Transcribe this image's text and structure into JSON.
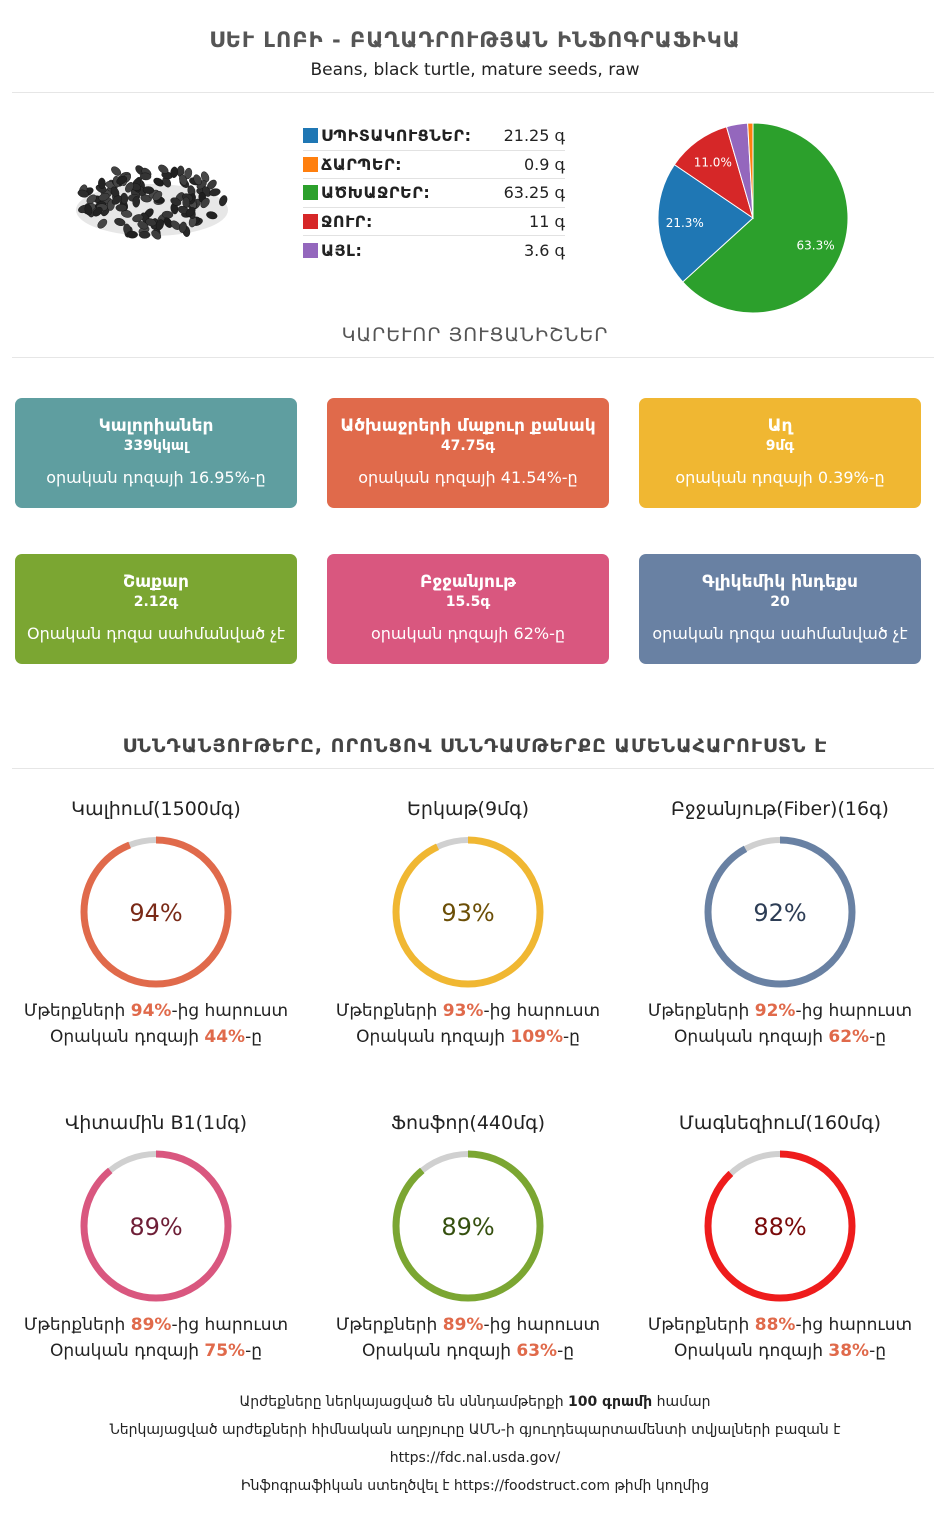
{
  "header": {
    "title": "ՍԵՒ ԼՈԲԻ - ԲԱՂԱԴՐՈՒԹՅԱՆ ԻՆՖՈԳՐԱՖԻԿԱ",
    "subtitle": "Beans, black turtle, mature seeds, raw"
  },
  "macros": [
    {
      "label": "ՍՊԻՏԱԿՈՒՑՆԵՐ:",
      "value": "21.25 գ",
      "color": "#1f77b4"
    },
    {
      "label": "ՃԱՐՊԵՐ:",
      "value": "0.9 գ",
      "color": "#ff7f0e"
    },
    {
      "label": "ԱԾԽԱՋՐԵՐ:",
      "value": "63.25 գ",
      "color": "#2ca02c"
    },
    {
      "label": "ՋՈՒՐ:",
      "value": "11 գ",
      "color": "#d62728"
    },
    {
      "label": "ԱՅԼ:",
      "value": "3.6 գ",
      "color": "#9467bd"
    }
  ],
  "chart_data": {
    "type": "pie",
    "slices": [
      {
        "name": "ԱԾԽԱՋՐԵՐ",
        "value": 63.25,
        "label": "63.3%",
        "color": "#2ca02c"
      },
      {
        "name": "ՍՊԻՏԱԿՈՒՑՆԵՐ",
        "value": 21.25,
        "label": "21.3%",
        "color": "#1f77b4"
      },
      {
        "name": "ՋՈՒՐ",
        "value": 11,
        "label": "11.0%",
        "color": "#d62728"
      },
      {
        "name": "ԱՅԼ",
        "value": 3.6,
        "label": "",
        "color": "#9467bd"
      },
      {
        "name": "ՃԱՐՊԵՐ",
        "value": 0.9,
        "label": "",
        "color": "#ff7f0e"
      }
    ]
  },
  "key_features_heading": "ԿԱՐԵՒՈՐ ՅՈՒՑԱՆԻՇՆԵՐ",
  "cards": [
    {
      "title": "Կալորիաներ",
      "value": "339կկալ",
      "note": "օրական դոզայի 16.95%-ը",
      "color": "#5f9ea0"
    },
    {
      "title": "Ածխաջրերի մաքուր քանակ",
      "value": "47.75գ",
      "note": "օրական դոզայի 41.54%-ը",
      "color": "#e06a4b"
    },
    {
      "title": "Աղ",
      "value": "9մգ",
      "note": "օրական դոզայի 0.39%-ը",
      "color": "#f0b732"
    },
    {
      "title": "Շաքար",
      "value": "2.12գ",
      "note": "Օրական դոզա սահմանված չէ",
      "color": "#7ba632"
    },
    {
      "title": "Բջջանյութ",
      "value": "15.5գ",
      "note": "օրական դոզայի 62%-ը",
      "color": "#d9577f"
    },
    {
      "title": "Գլիկեմիկ ինդեքս",
      "value": "20",
      "note": "օրական դոզա սահմանված չէ",
      "color": "#6981a3"
    }
  ],
  "nutrients_heading": "ՍՆՆԴԱՆՅՈՒԹԵՐԸ, ՈՐՈՆՑՈՎ ՍՆՆԴԱՄԹԵՐՔԸ ԱՄԵՆԱՀԱՐՈՒՍՏՆ Է",
  "rings": [
    {
      "name": "Կալիում(1500մգ)",
      "percent": 94,
      "pct_text": "94%",
      "color": "#e06a4b",
      "text_color": "#7a2a17",
      "richer_pre": "Մթերքների ",
      "richer_val": "94%",
      "richer_post": "-ից հարուստ",
      "daily_pre": "Օրական դոզայի ",
      "daily_val": "44%",
      "daily_post": "-ը"
    },
    {
      "name": "Երկաթ(9մգ)",
      "percent": 93,
      "pct_text": "93%",
      "color": "#f0b732",
      "text_color": "#6b4e06",
      "richer_pre": "Մթերքների ",
      "richer_val": "93%",
      "richer_post": "-ից հարուստ",
      "daily_pre": "Օրական դոզայի ",
      "daily_val": "109%",
      "daily_post": "-ը"
    },
    {
      "name": "Բջջանյութ(Fiber)(16գ)",
      "percent": 92,
      "pct_text": "92%",
      "color": "#6981a3",
      "text_color": "#2d3d55",
      "richer_pre": "Մթերքների ",
      "richer_val": "92%",
      "richer_post": "-ից հարուստ",
      "daily_pre": "Օրական դոզայի ",
      "daily_val": "62%",
      "daily_post": "-ը"
    },
    {
      "name": "Վիտամին B1(1մգ)",
      "percent": 89,
      "pct_text": "89%",
      "color": "#d9577f",
      "text_color": "#6e1f37",
      "richer_pre": "Մթերքների ",
      "richer_val": "89%",
      "richer_post": "-ից հարուստ",
      "daily_pre": "Օրական դոզայի ",
      "daily_val": "75%",
      "daily_post": "-ը"
    },
    {
      "name": "Ֆոսֆոր(440մգ)",
      "percent": 89,
      "pct_text": "89%",
      "color": "#7ba632",
      "text_color": "#35500f",
      "richer_pre": "Մթերքների ",
      "richer_val": "89%",
      "richer_post": "-ից հարուստ",
      "daily_pre": "Օրական դոզայի ",
      "daily_val": "63%",
      "daily_post": "-ը"
    },
    {
      "name": "Մագնեզիում(160մգ)",
      "percent": 88,
      "pct_text": "88%",
      "color": "#ee1c1c",
      "text_color": "#7a0a0a",
      "richer_pre": "Մթերքների ",
      "richer_val": "88%",
      "richer_post": "-ից հարուստ",
      "daily_pre": "Օրական դոզայի ",
      "daily_val": "38%",
      "daily_post": "-ը"
    }
  ],
  "footer": {
    "line1_pre": "Արժեքները ներկայացված են սննդամթերքի ",
    "line1_bold": "100 գրամի",
    "line1_post": " համար",
    "line2": "Ներկայացված արժեքների հիմնական աղբյուրը ԱՄՆ-ի գյուղդեպարտամենտի տվյալների բազան է",
    "line3": "https://fdc.nal.usda.gov/",
    "line4_pre": "Ինֆոգրաֆիկան ստեղծվել է ",
    "line4_link": "https://foodstruct.com",
    "line4_post": " թիմի կողմից"
  }
}
